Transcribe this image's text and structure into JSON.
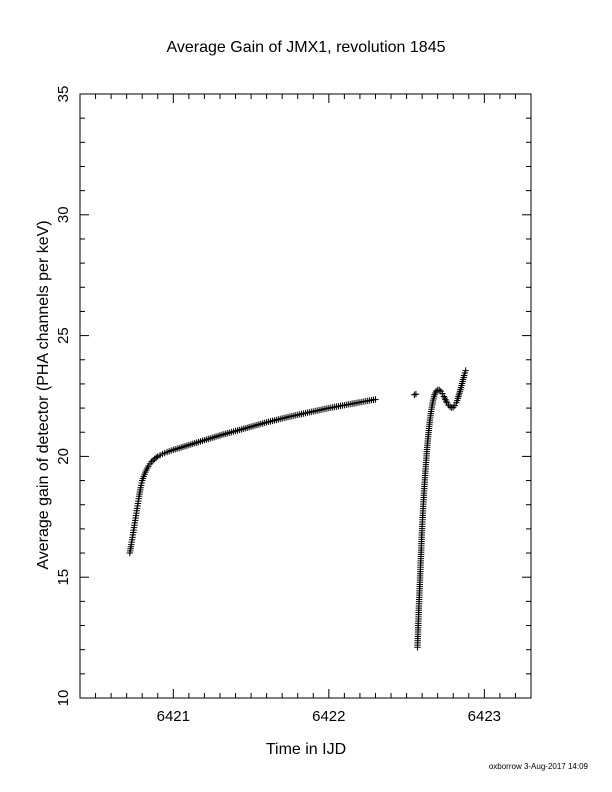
{
  "chart_data": {
    "type": "scatter",
    "title": "Average Gain of JMX1, revolution 1845",
    "xlabel": "Time in IJD",
    "ylabel": "Average gain of detector (PHA channels per keV)",
    "xlim": [
      6420.4,
      6423.3
    ],
    "ylim": [
      10,
      35
    ],
    "x_ticks": [
      6421,
      6422,
      6423
    ],
    "x_tick_labels": [
      "6421",
      "6422",
      "6423"
    ],
    "x_minor_step": 0.1,
    "y_ticks": [
      10,
      15,
      20,
      25,
      30,
      35
    ],
    "y_tick_labels": [
      "10",
      "15",
      "20",
      "25",
      "30",
      "35"
    ],
    "y_minor_step": 1,
    "grid": false,
    "legend": "none",
    "marker": "plus",
    "series": [
      {
        "segments": [
          {
            "points": [
              [
                6420.72,
                16.0
              ],
              [
                6420.73,
                16.35
              ],
              [
                6420.74,
                16.75
              ],
              [
                6420.75,
                17.15
              ],
              [
                6420.76,
                17.55
              ],
              [
                6420.77,
                17.95
              ],
              [
                6420.78,
                18.35
              ],
              [
                6420.79,
                18.7
              ],
              [
                6420.8,
                19.0
              ],
              [
                6420.82,
                19.35
              ],
              [
                6420.84,
                19.6
              ],
              [
                6420.86,
                19.78
              ],
              [
                6420.88,
                19.9
              ],
              [
                6420.9,
                20.0
              ],
              [
                6420.93,
                20.1
              ],
              [
                6420.96,
                20.18
              ],
              [
                6421.0,
                20.27
              ],
              [
                6421.05,
                20.37
              ],
              [
                6421.1,
                20.47
              ],
              [
                6421.15,
                20.57
              ],
              [
                6421.2,
                20.67
              ],
              [
                6421.25,
                20.77
              ],
              [
                6421.3,
                20.87
              ],
              [
                6421.35,
                20.96
              ],
              [
                6421.4,
                21.05
              ],
              [
                6421.45,
                21.14
              ],
              [
                6421.5,
                21.23
              ],
              [
                6421.55,
                21.32
              ],
              [
                6421.6,
                21.41
              ],
              [
                6421.65,
                21.49
              ],
              [
                6421.7,
                21.57
              ],
              [
                6421.75,
                21.65
              ],
              [
                6421.8,
                21.72
              ],
              [
                6421.85,
                21.79
              ],
              [
                6421.9,
                21.86
              ],
              [
                6421.95,
                21.93
              ],
              [
                6422.0,
                22.0
              ],
              [
                6422.05,
                22.06
              ],
              [
                6422.1,
                22.12
              ],
              [
                6422.15,
                22.18
              ],
              [
                6422.2,
                22.24
              ],
              [
                6422.25,
                22.3
              ],
              [
                6422.3,
                22.36
              ]
            ]
          },
          {
            "points": [
              [
                6422.55,
                22.55
              ],
              [
                6422.56,
                22.58
              ]
            ]
          },
          {
            "points": [
              [
                6422.57,
                12.1
              ],
              [
                6422.575,
                13.0
              ],
              [
                6422.58,
                13.9
              ],
              [
                6422.585,
                14.7
              ],
              [
                6422.59,
                15.5
              ],
              [
                6422.595,
                16.3
              ],
              [
                6422.6,
                17.1
              ],
              [
                6422.61,
                18.3
              ],
              [
                6422.62,
                19.3
              ],
              [
                6422.63,
                20.2
              ],
              [
                6422.64,
                20.9
              ],
              [
                6422.65,
                21.5
              ],
              [
                6422.66,
                21.95
              ],
              [
                6422.67,
                22.3
              ],
              [
                6422.68,
                22.55
              ],
              [
                6422.69,
                22.7
              ],
              [
                6422.7,
                22.75
              ],
              [
                6422.71,
                22.75
              ],
              [
                6422.72,
                22.7
              ],
              [
                6422.73,
                22.6
              ],
              [
                6422.74,
                22.48
              ],
              [
                6422.75,
                22.35
              ],
              [
                6422.76,
                22.22
              ],
              [
                6422.77,
                22.12
              ],
              [
                6422.78,
                22.05
              ],
              [
                6422.79,
                22.02
              ],
              [
                6422.8,
                22.03
              ],
              [
                6422.81,
                22.1
              ],
              [
                6422.82,
                22.22
              ],
              [
                6422.83,
                22.4
              ],
              [
                6422.84,
                22.62
              ],
              [
                6422.85,
                22.85
              ],
              [
                6422.86,
                23.1
              ],
              [
                6422.87,
                23.35
              ],
              [
                6422.88,
                23.55
              ]
            ]
          }
        ]
      }
    ]
  },
  "footer": {
    "stamp": "oxborrow 3-Aug-2017 14:09"
  }
}
